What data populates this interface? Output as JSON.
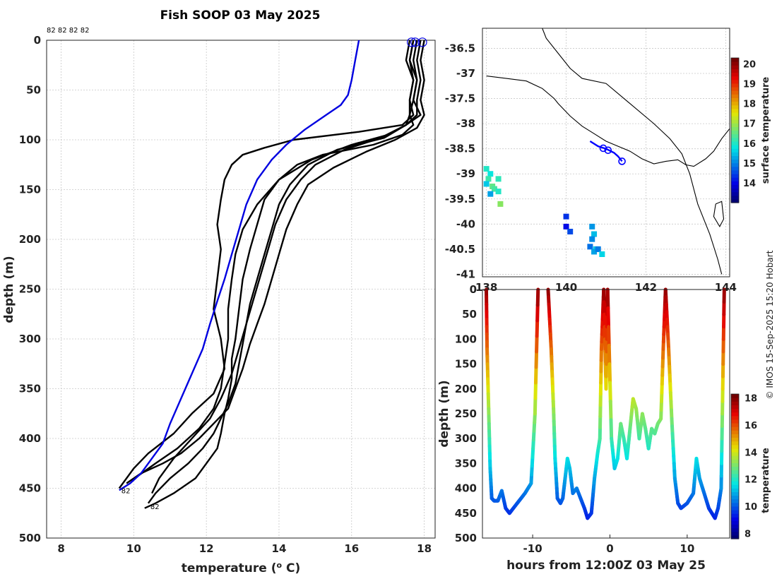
{
  "title": "Fish SOOP 03 May 2025",
  "profile_ids_label": "82 82 82 82",
  "copyright": "© IMOS 15-Sep-2025 15:20 Hobart",
  "colors": {
    "blue_profile": "#0000e0",
    "black_profile": "#000000",
    "coast": "#000000",
    "track": "#0000ff"
  },
  "chart_data": [
    {
      "name": "profiles",
      "type": "line",
      "xlabel": "temperature (° C)",
      "ylabel": "depth (m)",
      "xlim": [
        7.6,
        18.3
      ],
      "ylim": [
        500,
        0
      ],
      "xticks": [
        8,
        10,
        12,
        14,
        16,
        18
      ],
      "yticks": [
        0,
        50,
        100,
        150,
        200,
        250,
        300,
        350,
        400,
        450,
        500
      ],
      "grid": true,
      "bottom_labels": [
        "82",
        "82"
      ],
      "blue_series": {
        "name": "climatology",
        "x": [
          16.2,
          16.1,
          16.0,
          15.9,
          15.7,
          15.3,
          14.7,
          14.2,
          13.8,
          13.4,
          13.1,
          12.9,
          12.7,
          12.5,
          12.3,
          12.1,
          11.9,
          11.6,
          11.3,
          11.0,
          10.8,
          10.5,
          10.2,
          9.9,
          9.6
        ],
        "y": [
          0,
          20,
          40,
          55,
          65,
          75,
          90,
          105,
          120,
          140,
          165,
          190,
          215,
          240,
          262,
          285,
          310,
          335,
          360,
          385,
          405,
          420,
          435,
          445,
          452
        ]
      },
      "black_series": [
        {
          "x": [
            17.7,
            17.6,
            17.7,
            17.6,
            17.6,
            17.7,
            17.4,
            16.6,
            15.2,
            14.5,
            14.0,
            13.6,
            13.4,
            13.2,
            13.0,
            12.9,
            12.8,
            12.7,
            12.7,
            12.6,
            12.5,
            12.4,
            12.3,
            12.0,
            11.7,
            11.1,
            10.6,
            10.3
          ],
          "y": [
            0,
            20,
            40,
            60,
            75,
            85,
            95,
            105,
            115,
            125,
            140,
            160,
            185,
            210,
            240,
            270,
            300,
            320,
            340,
            360,
            375,
            395,
            410,
            425,
            440,
            455,
            465,
            470
          ]
        },
        {
          "x": [
            17.8,
            17.7,
            17.8,
            17.7,
            17.9,
            17.5,
            16.9,
            15.6,
            14.8,
            14.3,
            14.0,
            13.8,
            13.6,
            13.4,
            13.2,
            13.1,
            13.0,
            12.9,
            12.8,
            12.6,
            12.4,
            12.2,
            11.9,
            11.5,
            11.0,
            10.6,
            10.4
          ],
          "y": [
            0,
            20,
            40,
            60,
            75,
            85,
            98,
            110,
            125,
            145,
            165,
            190,
            215,
            240,
            265,
            285,
            305,
            325,
            345,
            365,
            380,
            395,
            410,
            425,
            440,
            455,
            465
          ]
        },
        {
          "x": [
            18.0,
            17.9,
            18.0,
            17.9,
            18.0,
            17.8,
            17.2,
            16.4,
            15.5,
            14.8,
            14.5,
            14.2,
            14.0,
            13.8,
            13.6,
            13.4,
            13.2,
            13.0,
            12.8,
            12.6,
            12.2,
            11.8,
            11.3,
            10.8,
            10.2,
            9.8
          ],
          "y": [
            0,
            20,
            40,
            60,
            75,
            88,
            100,
            112,
            128,
            145,
            165,
            190,
            215,
            240,
            265,
            285,
            305,
            330,
            350,
            370,
            385,
            400,
            415,
            425,
            435,
            445
          ]
        },
        {
          "x": [
            17.6,
            17.5,
            17.7,
            17.6,
            17.7,
            17.4,
            16.2,
            14.4,
            13.6,
            13.0,
            12.7,
            12.5,
            12.4,
            12.3,
            12.4,
            12.3,
            12.2,
            12.4,
            12.5,
            12.2,
            11.6,
            11.1,
            10.4,
            10.0,
            9.6
          ],
          "y": [
            0,
            20,
            40,
            60,
            75,
            85,
            92,
            100,
            108,
            115,
            125,
            140,
            160,
            185,
            210,
            240,
            270,
            300,
            330,
            355,
            375,
            395,
            415,
            430,
            450
          ]
        },
        {
          "x": [
            17.9,
            17.8,
            17.9,
            17.8,
            17.8,
            17.5,
            16.8,
            15.8,
            15.0,
            14.6,
            14.2,
            13.9,
            13.7,
            13.5,
            13.3,
            13.1,
            12.9,
            12.7,
            12.4,
            12.1,
            11.6,
            11.1,
            10.7,
            10.5
          ],
          "y": [
            0,
            20,
            40,
            60,
            75,
            85,
            98,
            110,
            125,
            140,
            160,
            185,
            210,
            235,
            260,
            285,
            310,
            335,
            360,
            380,
            400,
            420,
            440,
            455
          ]
        },
        {
          "x": [
            17.7,
            17.6,
            17.8,
            17.7,
            17.6,
            17.5,
            17.0,
            16.0,
            14.9,
            14.0,
            13.4,
            13.0,
            12.8,
            12.7,
            12.6,
            12.6,
            12.5,
            12.4,
            12.2,
            11.8,
            11.2,
            10.6,
            10.1
          ],
          "y": [
            0,
            20,
            40,
            60,
            75,
            85,
            95,
            105,
            120,
            140,
            165,
            190,
            215,
            240,
            270,
            300,
            325,
            350,
            370,
            390,
            410,
            425,
            438
          ]
        }
      ]
    },
    {
      "name": "map",
      "type": "scatter",
      "xlim": [
        137.9,
        144.1
      ],
      "ylim": [
        -41.05,
        -36.1
      ],
      "xticks": [
        138,
        140,
        142,
        144
      ],
      "yticks": [
        -36.5,
        -37,
        -37.5,
        -38,
        -38.5,
        -39,
        -39.5,
        -40,
        -40.5,
        -41
      ],
      "grid": true,
      "colorbar": {
        "label": "surface temperature",
        "range": [
          13,
          20.3
        ],
        "ticks": [
          14,
          15,
          16,
          17,
          18,
          19,
          20
        ]
      },
      "coastline_mainland": {
        "lon": [
          138.0,
          138.5,
          139.0,
          139.4,
          139.7,
          139.8,
          140.1,
          140.4,
          140.7,
          141.0,
          141.3,
          141.6,
          141.9,
          142.2,
          142.5,
          142.8,
          143.0,
          143.2,
          143.5,
          143.7,
          143.9,
          144.1
        ],
        "lat": [
          -37.05,
          -37.1,
          -37.15,
          -37.3,
          -37.5,
          -37.6,
          -37.85,
          -38.05,
          -38.2,
          -38.35,
          -38.45,
          -38.55,
          -38.7,
          -38.8,
          -38.75,
          -38.72,
          -38.82,
          -38.85,
          -38.7,
          -38.55,
          -38.3,
          -38.1
        ]
      },
      "coastline_island": {
        "lon": [
          139.4,
          139.5,
          139.8,
          140.1,
          140.4,
          141.0,
          141.6,
          142.2,
          142.6,
          142.9,
          143.1,
          143.3,
          143.6,
          143.8,
          143.9
        ],
        "lat": [
          -36.1,
          -36.3,
          -36.6,
          -36.9,
          -37.1,
          -37.2,
          -37.6,
          -38.0,
          -38.3,
          -38.6,
          -39.0,
          -39.6,
          -40.2,
          -40.7,
          -41.0
        ]
      },
      "king_island": {
        "lon": [
          143.75,
          143.9,
          143.95,
          143.85,
          143.7,
          143.75
        ],
        "lat": [
          -39.6,
          -39.55,
          -39.9,
          -40.05,
          -39.85,
          -39.6
        ]
      },
      "track": {
        "lon": [
          140.6,
          140.8,
          141.0,
          141.2,
          141.3,
          141.4
        ],
        "lat": [
          -38.35,
          -38.45,
          -38.5,
          -38.58,
          -38.65,
          -38.75
        ]
      },
      "track_stations": {
        "lon": [
          140.93,
          141.05,
          141.4
        ],
        "lat": [
          -38.49,
          -38.53,
          -38.75
        ]
      },
      "surface_points": {
        "lon": [
          138.0,
          138.1,
          138.05,
          138.0,
          138.15,
          138.2,
          138.3,
          138.35,
          138.1,
          138.3,
          140.0,
          140.0,
          140.1,
          140.65,
          140.7,
          140.65,
          140.6,
          140.75,
          140.7,
          140.8,
          140.9
        ],
        "lat": [
          -38.9,
          -39.0,
          -39.1,
          -39.2,
          -39.25,
          -39.3,
          -39.35,
          -39.6,
          -39.4,
          -39.1,
          -39.85,
          -40.05,
          -40.15,
          -40.05,
          -40.2,
          -40.3,
          -40.45,
          -40.5,
          -40.55,
          -40.5,
          -40.6
        ],
        "value": [
          16.0,
          15.8,
          16.2,
          15.5,
          16.5,
          16.3,
          16.0,
          16.8,
          15.2,
          16.1,
          14.3,
          14.0,
          14.5,
          15.1,
          15.4,
          15.0,
          14.8,
          15.5,
          15.2,
          14.9,
          15.6
        ]
      }
    },
    {
      "name": "time-depth",
      "type": "scatter",
      "xlabel": "hours from 12:00Z 03 May 25",
      "ylabel": "depth (m)",
      "xlim": [
        -16.5,
        15.5
      ],
      "ylim": [
        500,
        0
      ],
      "xticks": [
        -10,
        0,
        10
      ],
      "yticks": [
        0,
        50,
        100,
        150,
        200,
        250,
        300,
        350,
        400,
        450,
        500
      ],
      "colorbar": {
        "label": "temperature",
        "range": [
          7.6,
          18.3
        ],
        "ticks": [
          8,
          10,
          12,
          14,
          16,
          18
        ]
      },
      "casts": [
        {
          "t": [
            -16,
            -15.9,
            -15.7,
            -15.5,
            -15.3,
            -15,
            -14.5,
            -14,
            -13.5,
            -13,
            -12,
            -11,
            -10.2,
            -9.7,
            -9.3
          ],
          "d": [
            0,
            120,
            240,
            360,
            420,
            425,
            425,
            405,
            440,
            450,
            430,
            410,
            390,
            250,
            0
          ]
        },
        {
          "t": [
            -8,
            -7.6,
            -7.3,
            -7.1,
            -6.8,
            -6.4,
            -6.1,
            -5.8,
            -5.5,
            -5.2,
            -4.8,
            -4.3,
            -3.8,
            -3.3,
            -2.9,
            -2.4,
            -2.0,
            -1.6,
            -1.3,
            -1.1,
            -0.8,
            -0.5,
            -0.3
          ],
          "d": [
            0,
            120,
            240,
            340,
            420,
            430,
            420,
            380,
            340,
            360,
            410,
            400,
            420,
            440,
            460,
            450,
            380,
            330,
            300,
            120,
            0,
            200,
            0
          ]
        },
        {
          "t": [
            -0.3,
            0.2,
            0.6,
            1.0,
            1.4,
            1.8,
            2.2,
            2.6,
            3.0,
            3.4,
            3.8,
            4.2,
            4.6,
            5.0,
            5.4,
            5.8,
            6.2,
            6.6,
            6.9,
            7.2
          ],
          "d": [
            0,
            300,
            360,
            340,
            270,
            300,
            340,
            280,
            220,
            240,
            300,
            250,
            280,
            320,
            280,
            290,
            270,
            260,
            120,
            0
          ]
        },
        {
          "t": [
            7.2,
            7.6,
            8.0,
            8.4,
            8.8,
            9.2,
            9.6,
            10.0,
            10.4,
            10.8,
            11.2,
            11.6,
            12.0,
            12.4,
            12.8,
            13.2,
            13.6,
            14.0,
            14.4,
            14.6,
            14.8
          ],
          "d": [
            0,
            120,
            260,
            380,
            430,
            440,
            435,
            430,
            420,
            410,
            340,
            380,
            400,
            420,
            440,
            450,
            460,
            440,
            400,
            200,
            0
          ]
        }
      ]
    }
  ]
}
